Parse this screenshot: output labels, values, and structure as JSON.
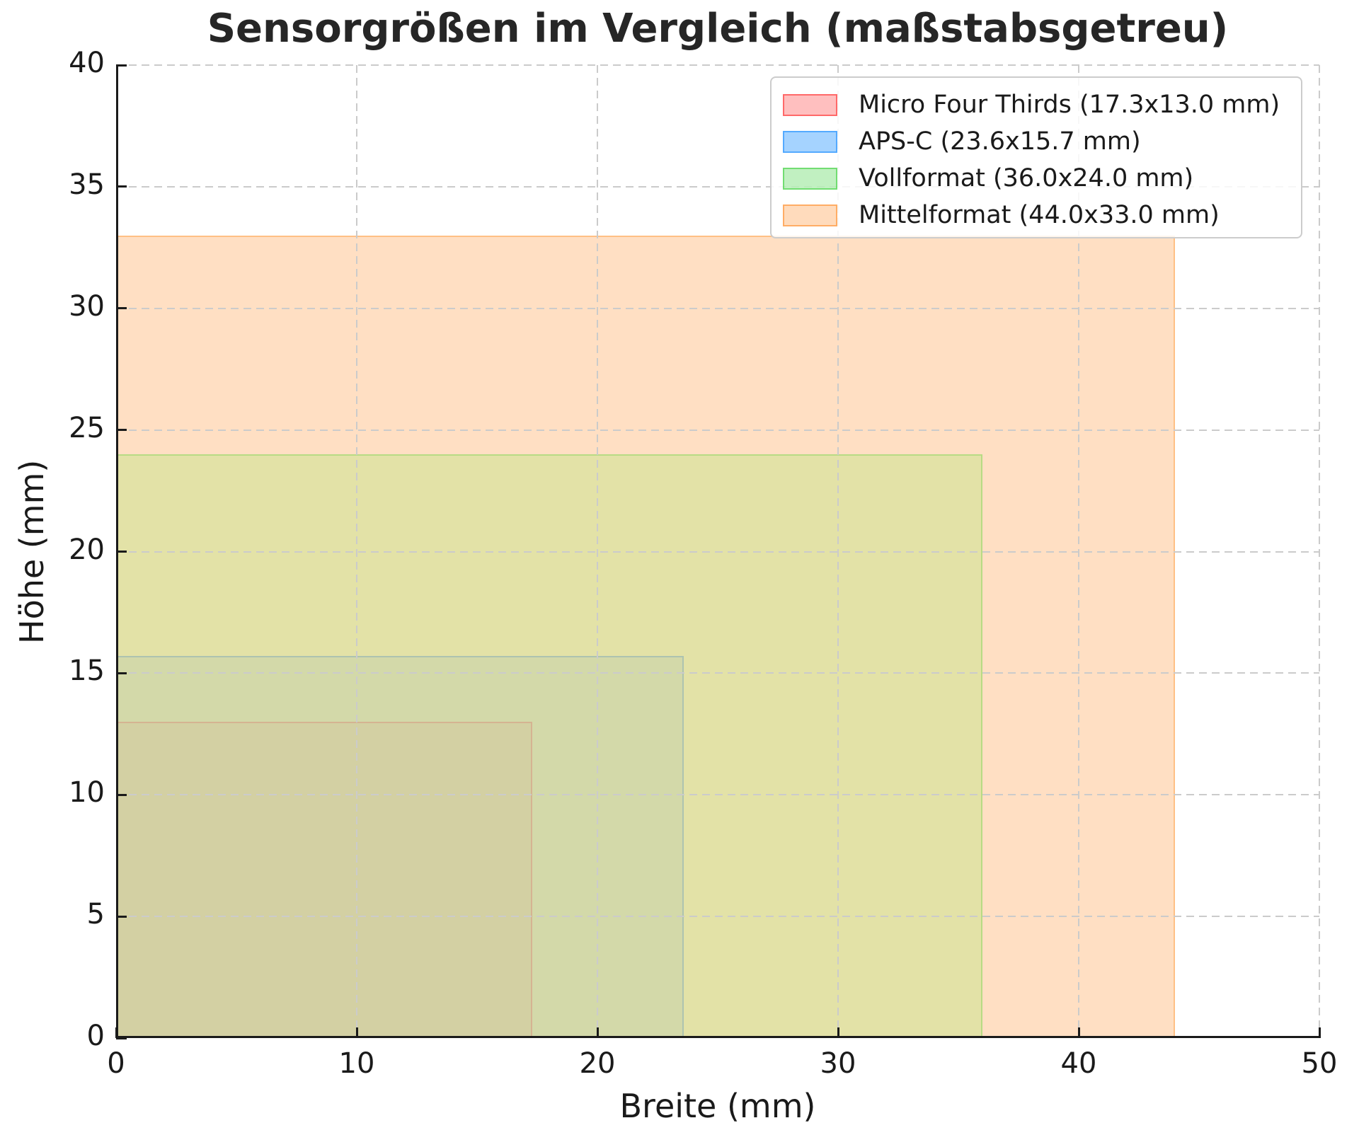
{
  "title": "Sensorgrößen im Vergleich (maßstabsgetreu)",
  "chart_data": {
    "type": "area",
    "title": "Sensorgrößen im Vergleich (maßstabsgetreu)",
    "xlabel": "Breite (mm)",
    "ylabel": "Höhe (mm)",
    "xlim": [
      0,
      50
    ],
    "ylim": [
      0,
      40
    ],
    "xticks": [
      0,
      10,
      20,
      30,
      40,
      50
    ],
    "yticks": [
      0,
      5,
      10,
      15,
      20,
      25,
      30,
      35,
      40
    ],
    "grid": true,
    "grid_style": "dashed",
    "legend_position": "upper right",
    "aspect": "equal",
    "series": [
      {
        "name": "Micro Four Thirds",
        "label": "Micro Four Thirds (17.3x13.0 mm)",
        "width_mm": 17.3,
        "height_mm": 13.0,
        "origin": [
          0,
          0
        ],
        "base_color": "#ff0000",
        "plot_fill": "rgba(210,60,60,0.05)",
        "plot_edge": "rgba(220,90,90,0.25)",
        "legend_fill": "rgba(255,0,0,0.25)",
        "legend_edge": "rgba(255,0,0,0.45)"
      },
      {
        "name": "APS-C",
        "label": "APS-C (23.6x15.7 mm)",
        "width_mm": 23.6,
        "height_mm": 15.7,
        "origin": [
          0,
          0
        ],
        "base_color": "#1e90ff",
        "plot_fill": "rgba(30,120,200,0.08)",
        "plot_edge": "rgba(60,130,200,0.25)",
        "legend_fill": "rgba(30,144,255,0.40)",
        "legend_edge": "rgba(30,144,255,0.60)"
      },
      {
        "name": "Vollformat",
        "label": "Vollformat (36.0x24.0 mm)",
        "width_mm": 36.0,
        "height_mm": 24.0,
        "origin": [
          0,
          0
        ],
        "base_color": "#32cd32",
        "plot_fill": "rgba(145,235,85,0.25)",
        "plot_edge": "rgba(120,210,80,0.40)",
        "legend_fill": "rgba(50,205,50,0.30)",
        "legend_edge": "rgba(50,205,50,0.55)"
      },
      {
        "name": "Mittelformat",
        "label": "Mittelformat (44.0x33.0 mm)",
        "width_mm": 44.0,
        "height_mm": 33.0,
        "origin": [
          0,
          0
        ],
        "base_color": "#ff7f0e",
        "plot_fill": "rgba(255,127,14,0.25)",
        "plot_edge": "rgba(255,145,40,0.40)",
        "legend_fill": "rgba(255,127,14,0.28)",
        "legend_edge": "rgba(255,127,14,0.50)"
      }
    ],
    "colors": {
      "grid": "#cbcbcb",
      "spine": "#1a1a1a",
      "text": "#1a1a1a",
      "title": "#262626",
      "legend_border": "#cccccc"
    }
  }
}
